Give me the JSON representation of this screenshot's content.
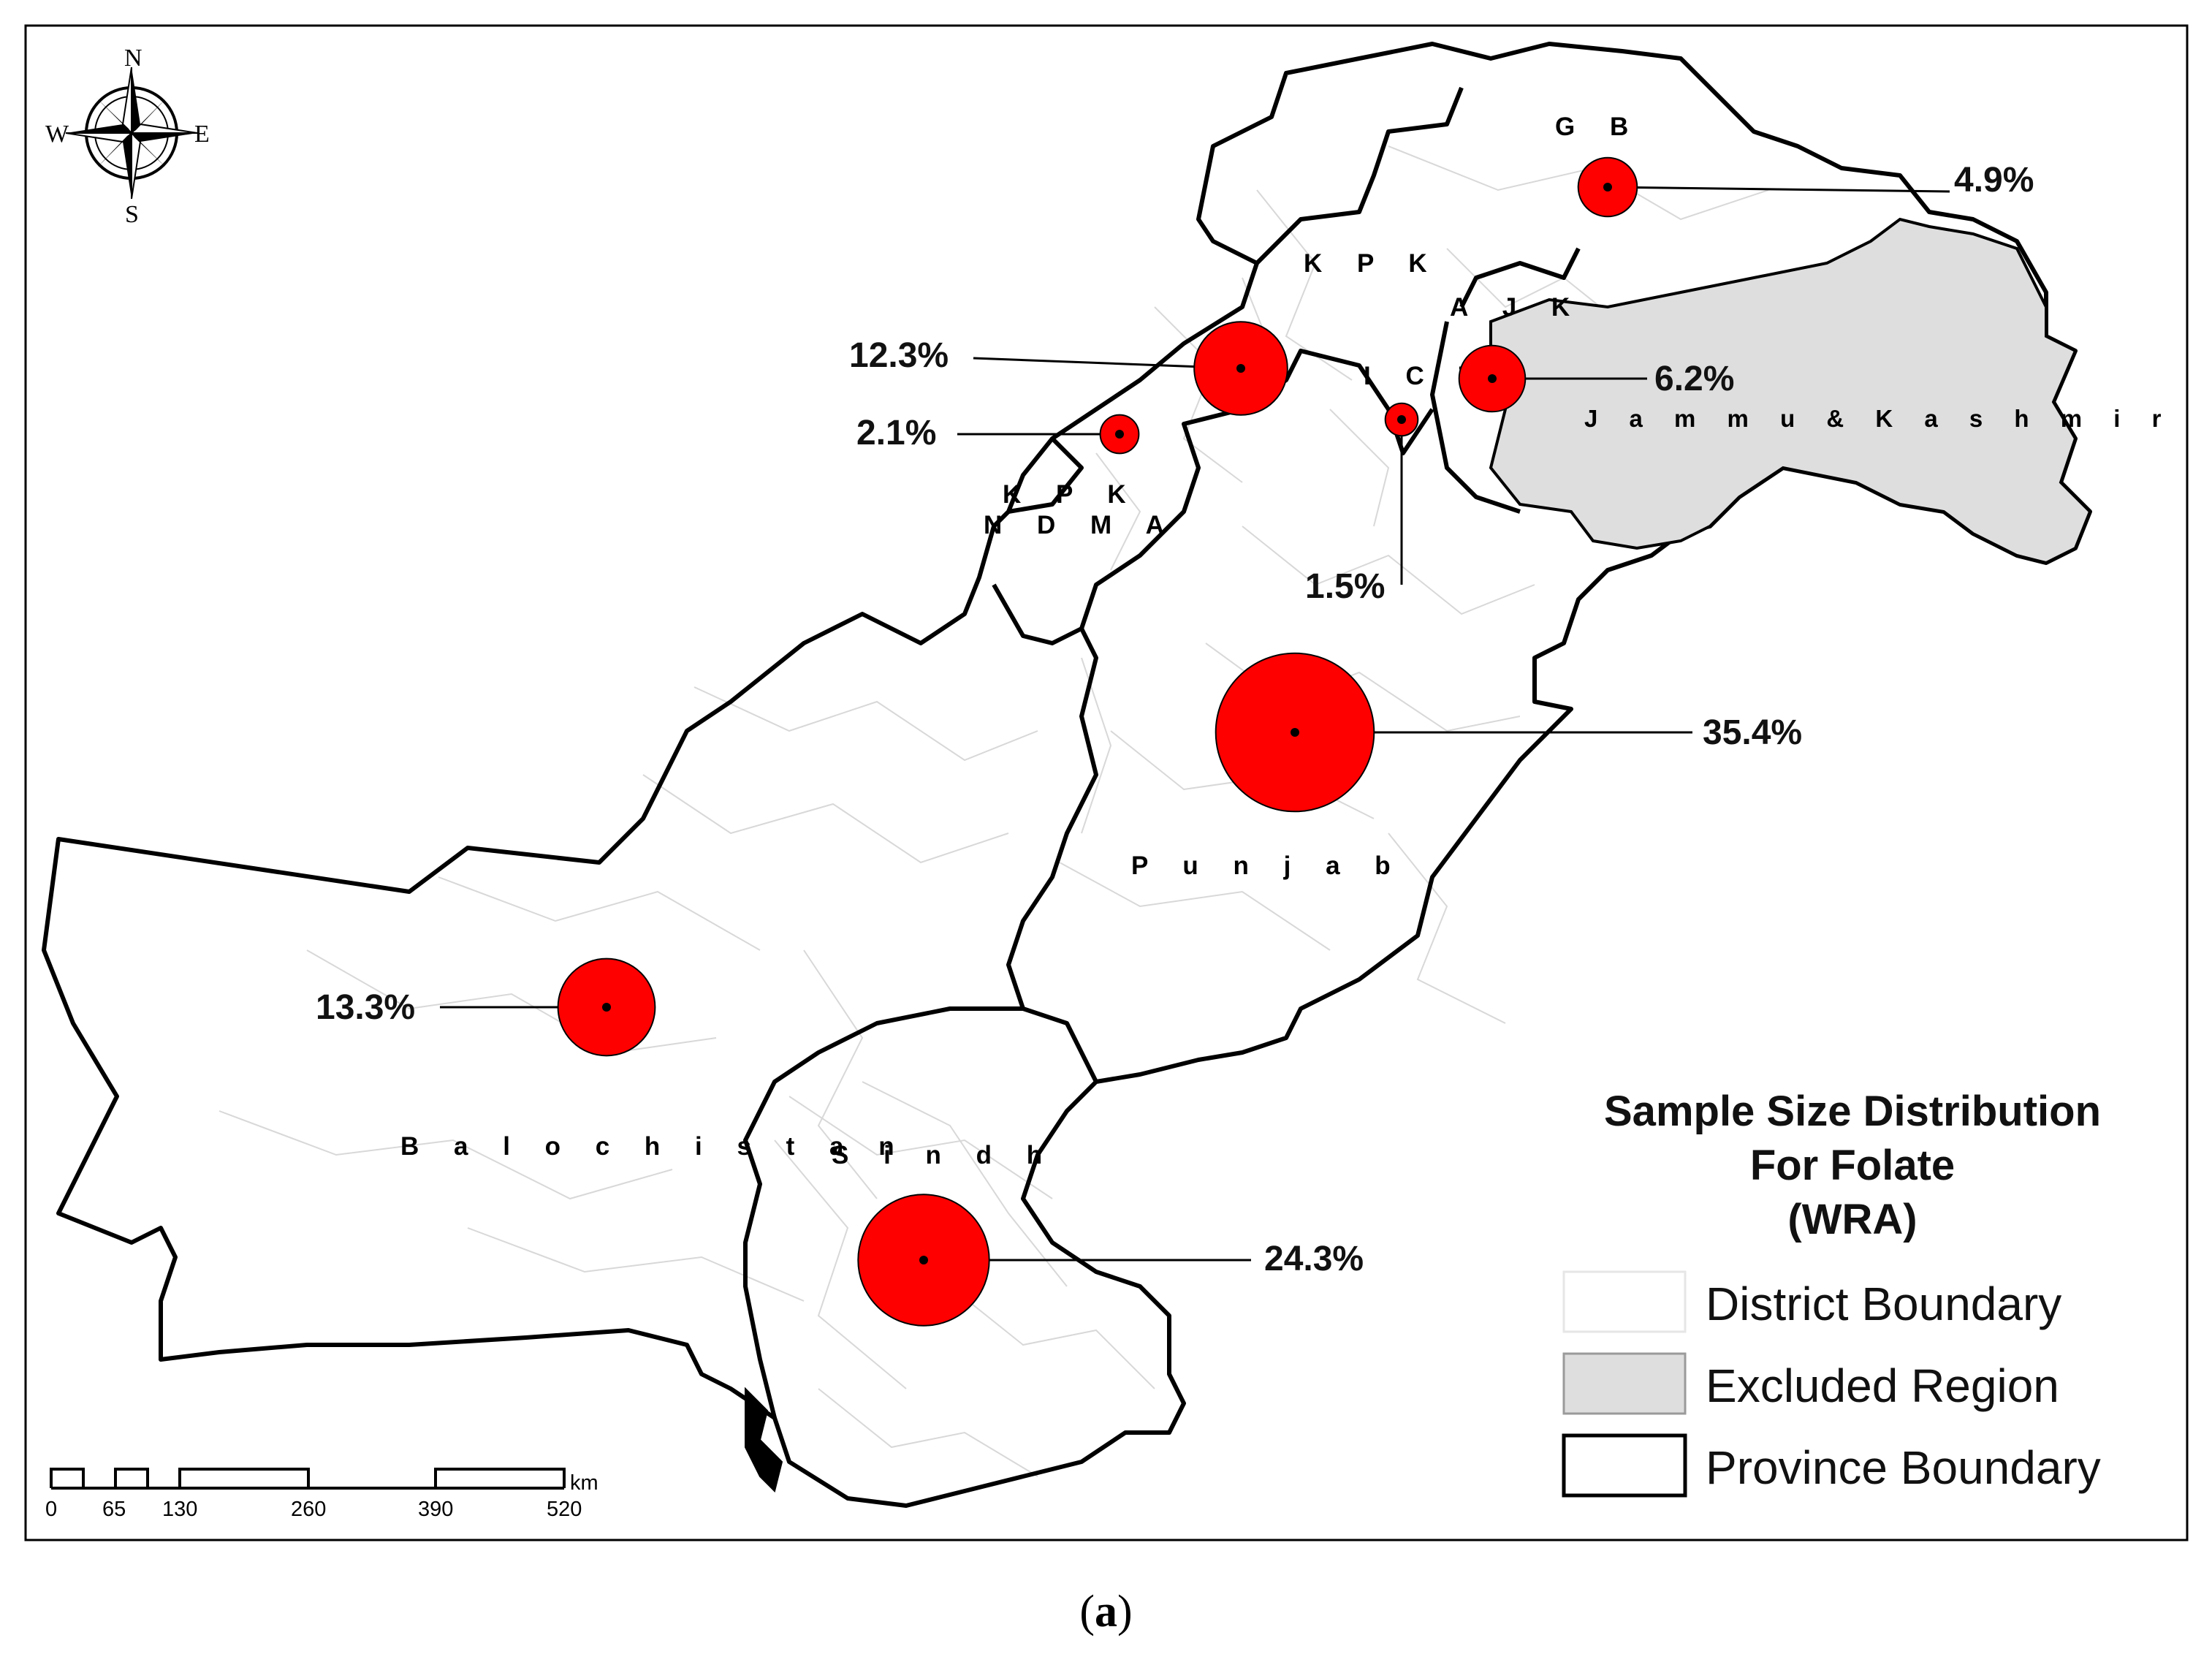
{
  "map": {
    "regions": {
      "gb": "G B",
      "kpk": "K P K",
      "ajk": "A J K",
      "ict": "I C T",
      "jammu_kashmir": "J a m m u   &   K a s h m i r",
      "kpk_ndma_line1": "K P K",
      "kpk_ndma_line2": "N D M A",
      "punjab": "P u n j a b",
      "balochistan": "B a l o c h i s t a n",
      "sindh": "S i n d h"
    },
    "proportional_symbols": [
      {
        "region": "GB",
        "label": "4.9%",
        "value": 4.9
      },
      {
        "region": "KPK",
        "label": "12.3%",
        "value": 12.3
      },
      {
        "region": "KPK NDMA",
        "label": "2.1%",
        "value": 2.1
      },
      {
        "region": "ICT",
        "label": "1.5%",
        "value": 1.5
      },
      {
        "region": "AJK",
        "label": "6.2%",
        "value": 6.2
      },
      {
        "region": "Punjab",
        "label": "35.4%",
        "value": 35.4
      },
      {
        "region": "Balochistan",
        "label": "13.3%",
        "value": 13.3
      },
      {
        "region": "Sindh",
        "label": "24.3%",
        "value": 24.3
      }
    ],
    "symbol_color": "#ff0000",
    "excluded_color": "#dedede",
    "compass": {
      "n": "N",
      "s": "S",
      "e": "E",
      "w": "W"
    },
    "scale_bar": {
      "unit": "km",
      "ticks": [
        "0",
        "65",
        "130",
        "260",
        "390",
        "520"
      ]
    },
    "legend": {
      "title_line1": "Sample Size Distribution",
      "title_line2": "For Folate",
      "title_line3": "(WRA)",
      "items": [
        {
          "label": "District Boundary"
        },
        {
          "label": "Excluded Region"
        },
        {
          "label": "Province Boundary"
        }
      ]
    }
  },
  "caption": {
    "open": "(",
    "letter": "a",
    "close": ")"
  }
}
